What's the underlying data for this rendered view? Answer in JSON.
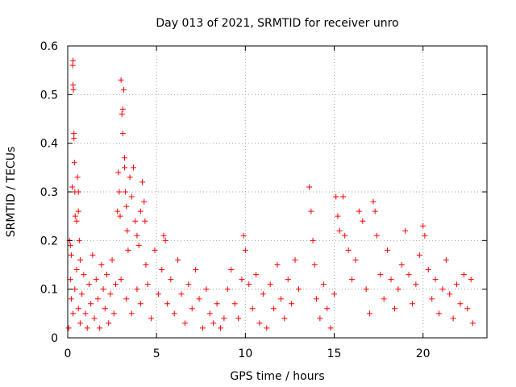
{
  "chart_data": {
    "type": "scatter",
    "title": "Day 013 of 2021, SRMTID for receiver unro",
    "xlabel": "GPS time / hours",
    "ylabel": "SRMTID / TECUs",
    "xlim": [
      0,
      23.6
    ],
    "ylim": [
      0,
      0.6
    ],
    "x_ticks": [
      0,
      5,
      10,
      15,
      20
    ],
    "x_tick_labels": [
      "0",
      "5",
      "10",
      "15",
      "20"
    ],
    "y_ticks": [
      0,
      0.1,
      0.2,
      0.3,
      0.4,
      0.5,
      0.6
    ],
    "y_tick_labels": [
      "0",
      "0.1",
      "0.2",
      "0.3",
      "0.4",
      "0.5",
      "0.6"
    ],
    "grid": true,
    "marker": "plus",
    "color": "#ff0000",
    "series": [
      {
        "name": "SRMTID",
        "points": [
          [
            0.05,
            0.02
          ],
          [
            0.1,
            0.2
          ],
          [
            0.15,
            0.19
          ],
          [
            0.2,
            0.17
          ],
          [
            0.25,
            0.31
          ],
          [
            0.28,
            0.56
          ],
          [
            0.3,
            0.57
          ],
          [
            0.3,
            0.52
          ],
          [
            0.32,
            0.51
          ],
          [
            0.35,
            0.42
          ],
          [
            0.35,
            0.41
          ],
          [
            0.38,
            0.36
          ],
          [
            0.4,
            0.3
          ],
          [
            0.42,
            0.25
          ],
          [
            0.5,
            0.24
          ],
          [
            0.55,
            0.33
          ],
          [
            0.6,
            0.3
          ],
          [
            0.6,
            0.26
          ],
          [
            0.65,
            0.2
          ],
          [
            0.7,
            0.16
          ],
          [
            0.15,
            0.12
          ],
          [
            0.2,
            0.08
          ],
          [
            0.3,
            0.05
          ],
          [
            0.4,
            0.1
          ],
          [
            0.5,
            0.14
          ],
          [
            0.6,
            0.06
          ],
          [
            0.7,
            0.03
          ],
          [
            0.8,
            0.09
          ],
          [
            0.9,
            0.13
          ],
          [
            1.0,
            0.05
          ],
          [
            1.1,
            0.02
          ],
          [
            1.2,
            0.11
          ],
          [
            1.3,
            0.07
          ],
          [
            1.4,
            0.17
          ],
          [
            1.5,
            0.04
          ],
          [
            1.6,
            0.12
          ],
          [
            1.7,
            0.08
          ],
          [
            1.8,
            0.02
          ],
          [
            1.9,
            0.15
          ],
          [
            2.0,
            0.1
          ],
          [
            2.1,
            0.06
          ],
          [
            2.2,
            0.13
          ],
          [
            2.3,
            0.03
          ],
          [
            2.4,
            0.09
          ],
          [
            2.5,
            0.16
          ],
          [
            2.6,
            0.05
          ],
          [
            2.7,
            0.11
          ],
          [
            2.8,
            0.26
          ],
          [
            2.85,
            0.34
          ],
          [
            2.9,
            0.3
          ],
          [
            2.95,
            0.25
          ],
          [
            3.0,
            0.53
          ],
          [
            3.05,
            0.46
          ],
          [
            3.1,
            0.47
          ],
          [
            3.1,
            0.42
          ],
          [
            3.15,
            0.51
          ],
          [
            3.2,
            0.37
          ],
          [
            3.2,
            0.35
          ],
          [
            3.25,
            0.3
          ],
          [
            3.3,
            0.27
          ],
          [
            3.35,
            0.22
          ],
          [
            3.4,
            0.18
          ],
          [
            3.5,
            0.33
          ],
          [
            3.6,
            0.29
          ],
          [
            3.7,
            0.35
          ],
          [
            3.8,
            0.24
          ],
          [
            3.9,
            0.21
          ],
          [
            4.0,
            0.19
          ],
          [
            4.1,
            0.26
          ],
          [
            4.2,
            0.32
          ],
          [
            4.3,
            0.28
          ],
          [
            4.35,
            0.24
          ],
          [
            4.4,
            0.15
          ],
          [
            3.0,
            0.12
          ],
          [
            3.3,
            0.08
          ],
          [
            3.6,
            0.05
          ],
          [
            3.9,
            0.1
          ],
          [
            4.1,
            0.07
          ],
          [
            4.5,
            0.11
          ],
          [
            4.7,
            0.04
          ],
          [
            4.9,
            0.18
          ],
          [
            5.1,
            0.09
          ],
          [
            5.3,
            0.14
          ],
          [
            5.4,
            0.21
          ],
          [
            5.5,
            0.2
          ],
          [
            5.6,
            0.07
          ],
          [
            5.8,
            0.12
          ],
          [
            6.0,
            0.05
          ],
          [
            6.2,
            0.16
          ],
          [
            6.4,
            0.09
          ],
          [
            6.6,
            0.03
          ],
          [
            6.8,
            0.11
          ],
          [
            7.0,
            0.06
          ],
          [
            7.2,
            0.14
          ],
          [
            7.4,
            0.08
          ],
          [
            7.6,
            0.02
          ],
          [
            7.8,
            0.1
          ],
          [
            8.0,
            0.05
          ],
          [
            8.2,
            0.03
          ],
          [
            8.4,
            0.07
          ],
          [
            8.6,
            0.02
          ],
          [
            8.8,
            0.04
          ],
          [
            9.0,
            0.1
          ],
          [
            9.2,
            0.14
          ],
          [
            9.4,
            0.07
          ],
          [
            9.6,
            0.04
          ],
          [
            9.8,
            0.12
          ],
          [
            9.9,
            0.21
          ],
          [
            10.0,
            0.18
          ],
          [
            10.2,
            0.11
          ],
          [
            10.4,
            0.06
          ],
          [
            10.6,
            0.13
          ],
          [
            10.8,
            0.03
          ],
          [
            11.0,
            0.09
          ],
          [
            11.2,
            0.02
          ],
          [
            11.4,
            0.11
          ],
          [
            11.6,
            0.06
          ],
          [
            11.8,
            0.15
          ],
          [
            12.0,
            0.08
          ],
          [
            12.2,
            0.04
          ],
          [
            12.4,
            0.12
          ],
          [
            12.6,
            0.07
          ],
          [
            12.8,
            0.16
          ],
          [
            13.0,
            0.1
          ],
          [
            13.6,
            0.31
          ],
          [
            13.7,
            0.26
          ],
          [
            13.8,
            0.2
          ],
          [
            13.9,
            0.15
          ],
          [
            14.0,
            0.08
          ],
          [
            14.2,
            0.04
          ],
          [
            14.4,
            0.11
          ],
          [
            14.6,
            0.06
          ],
          [
            14.8,
            0.02
          ],
          [
            15.0,
            0.09
          ],
          [
            15.1,
            0.29
          ],
          [
            15.2,
            0.25
          ],
          [
            15.3,
            0.22
          ],
          [
            15.5,
            0.29
          ],
          [
            15.6,
            0.21
          ],
          [
            15.8,
            0.18
          ],
          [
            16.0,
            0.12
          ],
          [
            16.2,
            0.16
          ],
          [
            16.4,
            0.26
          ],
          [
            16.6,
            0.24
          ],
          [
            16.8,
            0.1
          ],
          [
            17.0,
            0.05
          ],
          [
            17.2,
            0.28
          ],
          [
            17.3,
            0.26
          ],
          [
            17.4,
            0.21
          ],
          [
            17.6,
            0.13
          ],
          [
            17.8,
            0.08
          ],
          [
            18.0,
            0.18
          ],
          [
            18.2,
            0.12
          ],
          [
            18.4,
            0.06
          ],
          [
            18.6,
            0.1
          ],
          [
            18.8,
            0.15
          ],
          [
            19.0,
            0.22
          ],
          [
            19.2,
            0.13
          ],
          [
            19.4,
            0.07
          ],
          [
            19.6,
            0.11
          ],
          [
            19.8,
            0.17
          ],
          [
            20.0,
            0.23
          ],
          [
            20.1,
            0.21
          ],
          [
            20.3,
            0.14
          ],
          [
            20.5,
            0.08
          ],
          [
            20.7,
            0.12
          ],
          [
            20.9,
            0.05
          ],
          [
            21.1,
            0.1
          ],
          [
            21.3,
            0.16
          ],
          [
            21.5,
            0.09
          ],
          [
            21.7,
            0.04
          ],
          [
            21.9,
            0.11
          ],
          [
            22.1,
            0.07
          ],
          [
            22.3,
            0.13
          ],
          [
            22.5,
            0.06
          ],
          [
            22.7,
            0.12
          ],
          [
            22.8,
            0.03
          ]
        ]
      }
    ]
  }
}
